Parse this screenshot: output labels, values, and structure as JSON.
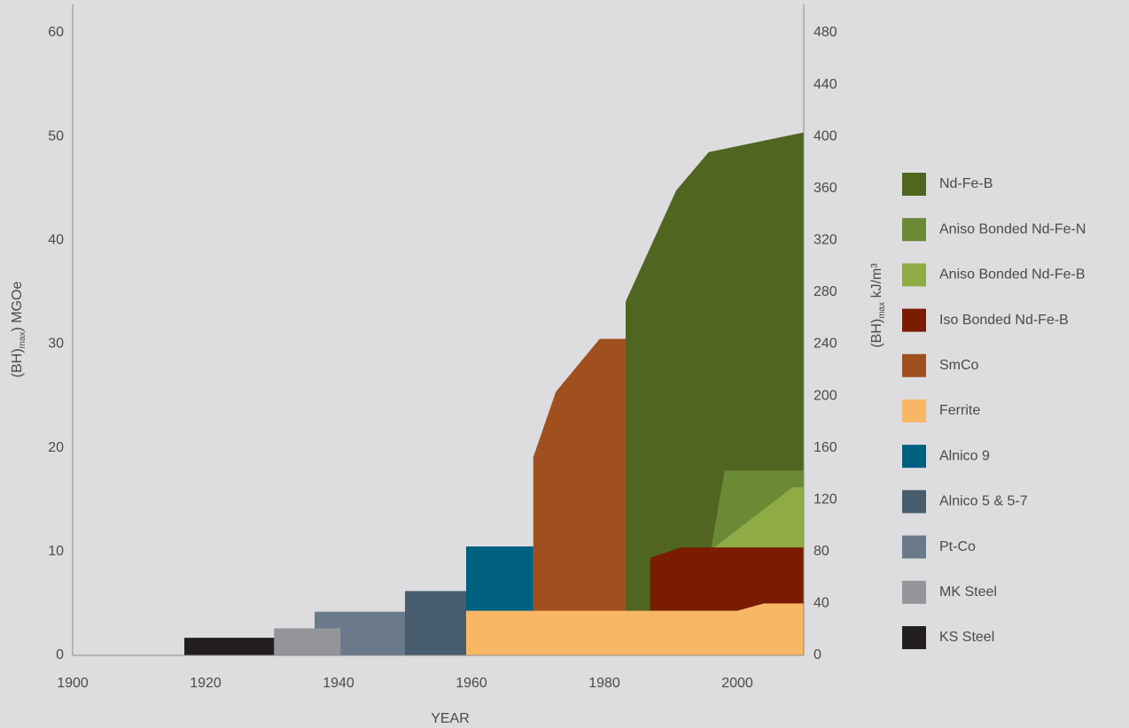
{
  "chart_data": {
    "type": "area",
    "xlabel": "YEAR",
    "ylabel": {
      "text": "(BH)",
      "sub": "max",
      "rest": ") MGOe"
    },
    "y2label": {
      "text": "(BH)",
      "sub": "max",
      "rest": " kJ/m³"
    },
    "xlim": [
      1900,
      2010
    ],
    "xticks": [
      1900,
      1920,
      1940,
      1960,
      1980,
      2000
    ],
    "ylim": [
      0,
      60
    ],
    "yticks": [
      0,
      10,
      20,
      30,
      40,
      50,
      60
    ],
    "y2lim": [
      0,
      480
    ],
    "y2ticks": [
      0,
      40,
      80,
      120,
      160,
      200,
      240,
      280,
      320,
      360,
      400,
      440,
      480
    ],
    "grid": false,
    "legend": "right",
    "series": [
      {
        "name": "Nd-Fe-B",
        "color": "#4f6520",
        "base": 0,
        "x": [
          1983.2,
          1983.2,
          1990.8,
          1995.7,
          2010
        ],
        "values": [
          0,
          34.1,
          44.8,
          48.5,
          50.4
        ]
      },
      {
        "name": "Aniso Bonded Nd-Fe-N",
        "color": "#6b8a35",
        "base": 0,
        "x": [
          1996.1,
          1998.1,
          2010
        ],
        "values": [
          10.5,
          17.8,
          17.8
        ]
      },
      {
        "name": "Aniso Bonded Nd-Fe-B",
        "color": "#8fab45",
        "base": 0,
        "x": [
          1996.1,
          2008.3,
          2010
        ],
        "values": [
          10.2,
          16.2,
          16.2
        ]
      },
      {
        "name": "Iso Bonded Nd-Fe-B",
        "color": "#7a1c00",
        "base": 0,
        "x": [
          1986.9,
          1991.5,
          2010
        ],
        "values": [
          9.4,
          10.4,
          10.4
        ]
      },
      {
        "name": "SmCo",
        "color": "#a0501e",
        "base": 0,
        "x": [
          1969.3,
          1972.7,
          1979.3,
          1983.2
        ],
        "values": [
          19.1,
          25.4,
          30.5,
          30.5
        ]
      },
      {
        "name": "Ferrite",
        "color": "#f8b764",
        "base": 0,
        "x": [
          1959.2,
          2000,
          2004,
          2010
        ],
        "values": [
          4.3,
          4.3,
          5.0,
          5.0
        ]
      },
      {
        "name": "Alnico 9",
        "color": "#006080",
        "base": 4.3,
        "x": [
          1959.2,
          1969.3
        ],
        "values": [
          10.5,
          10.5
        ]
      },
      {
        "name": "Alnico 5 & 5-7",
        "color": "#475d6e",
        "base": 0,
        "x": [
          1940.3,
          1950,
          1950,
          1959.2
        ],
        "values": [
          3.7,
          3.7,
          6.2,
          6.2
        ]
      },
      {
        "name": "Pt-Co",
        "color": "#6b7a8a",
        "base": 0,
        "x": [
          1936.4,
          1950
        ],
        "values": [
          4.2,
          4.2
        ]
      },
      {
        "name": "MK Steel",
        "color": "#939598",
        "base": 0,
        "x": [
          1930.3,
          1940.3
        ],
        "values": [
          2.6,
          2.6
        ]
      },
      {
        "name": "KS Steel",
        "color": "#231f20",
        "base": 0,
        "x": [
          1916.8,
          1930.3
        ],
        "values": [
          1.7,
          1.7
        ]
      }
    ]
  }
}
